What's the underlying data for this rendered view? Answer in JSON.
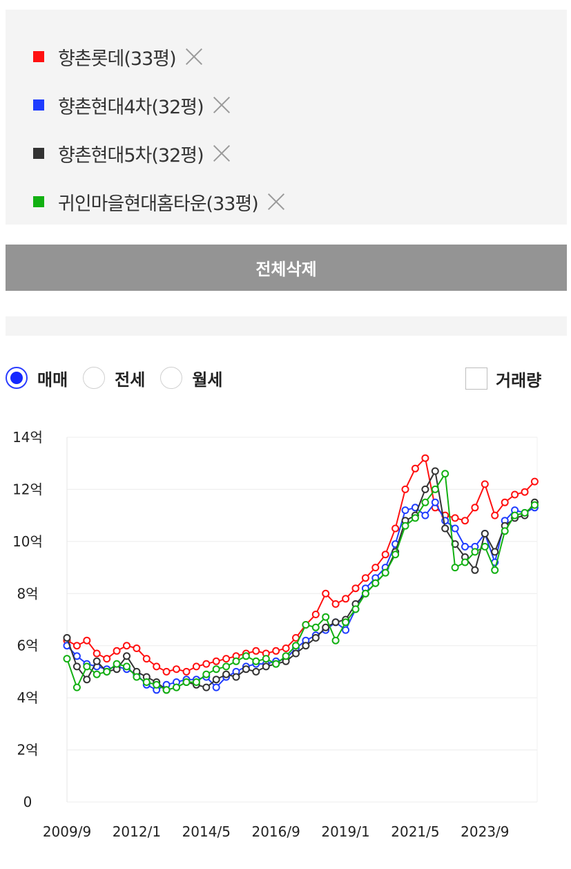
{
  "legend": {
    "items": [
      {
        "label": "향촌롯데(33평)",
        "color": "#ff1010",
        "swatch_icon": "red-square"
      },
      {
        "label": "향촌현대4차(32평)",
        "color": "#1f3cff",
        "swatch_icon": "blue-square"
      },
      {
        "label": "향촌현대5차(32평)",
        "color": "#333333",
        "swatch_icon": "dark-square"
      },
      {
        "label": "귀인마을현대홈타운(33평)",
        "color": "#12b012",
        "swatch_icon": "green-square"
      }
    ],
    "remove_icon": "close-icon"
  },
  "delete_all_label": "전체삭제",
  "trade_types": [
    {
      "label": "매매",
      "checked": true
    },
    {
      "label": "전세",
      "checked": false
    },
    {
      "label": "월세",
      "checked": false
    }
  ],
  "volume_toggle": {
    "label": "거래량",
    "checked": false
  },
  "chart_data": {
    "type": "line",
    "y_tick_labels": [
      "0",
      "2억",
      "4억",
      "6억",
      "8억",
      "10억",
      "12억",
      "14억"
    ],
    "ylim": [
      0,
      14
    ],
    "y_unit": "억",
    "x_tick_labels": [
      "2009/9",
      "2012/1",
      "2014/5",
      "2016/9",
      "2019/1",
      "2021/5",
      "2023/9"
    ],
    "xlim": [
      "2009/9",
      "2025/6"
    ],
    "grid": true,
    "markers": "hollow-circle",
    "series": [
      {
        "name": "향촌롯데(33평)",
        "color": "#ff1010",
        "points": [
          [
            "2009/9",
            6.2
          ],
          [
            "2010/1",
            6.0
          ],
          [
            "2010/5",
            6.2
          ],
          [
            "2010/9",
            5.7
          ],
          [
            "2011/1",
            5.5
          ],
          [
            "2011/5",
            5.8
          ],
          [
            "2011/9",
            6.0
          ],
          [
            "2012/1",
            5.9
          ],
          [
            "2012/5",
            5.5
          ],
          [
            "2012/9",
            5.2
          ],
          [
            "2013/1",
            5.0
          ],
          [
            "2013/5",
            5.1
          ],
          [
            "2013/9",
            5.0
          ],
          [
            "2014/1",
            5.2
          ],
          [
            "2014/5",
            5.3
          ],
          [
            "2014/9",
            5.4
          ],
          [
            "2015/1",
            5.5
          ],
          [
            "2015/5",
            5.6
          ],
          [
            "2015/9",
            5.7
          ],
          [
            "2016/1",
            5.8
          ],
          [
            "2016/5",
            5.7
          ],
          [
            "2016/9",
            5.8
          ],
          [
            "2017/1",
            5.9
          ],
          [
            "2017/5",
            6.3
          ],
          [
            "2017/9",
            6.8
          ],
          [
            "2018/1",
            7.2
          ],
          [
            "2018/5",
            8.0
          ],
          [
            "2018/9",
            7.6
          ],
          [
            "2019/1",
            7.8
          ],
          [
            "2019/5",
            8.2
          ],
          [
            "2019/9",
            8.6
          ],
          [
            "2020/1",
            9.0
          ],
          [
            "2020/5",
            9.5
          ],
          [
            "2020/9",
            10.5
          ],
          [
            "2021/1",
            12.0
          ],
          [
            "2021/5",
            12.8
          ],
          [
            "2021/9",
            13.2
          ],
          [
            "2022/1",
            11.3
          ],
          [
            "2022/5",
            11.0
          ],
          [
            "2022/9",
            10.9
          ],
          [
            "2023/1",
            10.8
          ],
          [
            "2023/5",
            11.3
          ],
          [
            "2023/9",
            12.2
          ],
          [
            "2024/1",
            11.0
          ],
          [
            "2024/5",
            11.5
          ],
          [
            "2024/9",
            11.8
          ],
          [
            "2025/1",
            11.9
          ],
          [
            "2025/5",
            12.3
          ]
        ]
      },
      {
        "name": "향촌현대4차(32평)",
        "color": "#1f3cff",
        "points": [
          [
            "2009/9",
            6.0
          ],
          [
            "2010/1",
            5.6
          ],
          [
            "2010/5",
            5.3
          ],
          [
            "2010/9",
            5.2
          ],
          [
            "2011/1",
            5.1
          ],
          [
            "2011/5",
            5.2
          ],
          [
            "2011/9",
            5.1
          ],
          [
            "2012/1",
            4.9
          ],
          [
            "2012/5",
            4.5
          ],
          [
            "2012/9",
            4.3
          ],
          [
            "2013/1",
            4.5
          ],
          [
            "2013/5",
            4.6
          ],
          [
            "2013/9",
            4.7
          ],
          [
            "2014/1",
            4.7
          ],
          [
            "2014/5",
            4.8
          ],
          [
            "2014/9",
            4.4
          ],
          [
            "2015/1",
            4.8
          ],
          [
            "2015/5",
            5.0
          ],
          [
            "2015/9",
            5.2
          ],
          [
            "2016/1",
            5.3
          ],
          [
            "2016/5",
            5.3
          ],
          [
            "2016/9",
            5.4
          ],
          [
            "2017/1",
            5.5
          ],
          [
            "2017/5",
            5.9
          ],
          [
            "2017/9",
            6.2
          ],
          [
            "2018/1",
            6.4
          ],
          [
            "2018/5",
            6.6
          ],
          [
            "2018/9",
            6.9
          ],
          [
            "2019/1",
            6.6
          ],
          [
            "2019/5",
            7.4
          ],
          [
            "2019/9",
            8.2
          ],
          [
            "2020/1",
            8.6
          ],
          [
            "2020/5",
            9.0
          ],
          [
            "2020/9",
            9.9
          ],
          [
            "2021/1",
            11.2
          ],
          [
            "2021/5",
            11.3
          ],
          [
            "2021/9",
            11.0
          ],
          [
            "2022/1",
            11.5
          ],
          [
            "2022/5",
            10.8
          ],
          [
            "2022/9",
            10.5
          ],
          [
            "2023/1",
            9.8
          ],
          [
            "2023/5",
            9.8
          ],
          [
            "2023/9",
            10.3
          ],
          [
            "2024/1",
            9.2
          ],
          [
            "2024/5",
            10.8
          ],
          [
            "2024/9",
            11.2
          ],
          [
            "2025/1",
            11.1
          ],
          [
            "2025/5",
            11.3
          ]
        ]
      },
      {
        "name": "향촌현대5차(32평)",
        "color": "#333333",
        "points": [
          [
            "2009/9",
            6.3
          ],
          [
            "2010/1",
            5.2
          ],
          [
            "2010/5",
            4.7
          ],
          [
            "2010/9",
            5.4
          ],
          [
            "2011/1",
            5.0
          ],
          [
            "2011/5",
            5.1
          ],
          [
            "2011/9",
            5.6
          ],
          [
            "2012/1",
            5.0
          ],
          [
            "2012/5",
            4.8
          ],
          [
            "2012/9",
            4.6
          ],
          [
            "2013/1",
            4.3
          ],
          [
            "2013/5",
            4.4
          ],
          [
            "2013/9",
            4.6
          ],
          [
            "2014/1",
            4.5
          ],
          [
            "2014/5",
            4.4
          ],
          [
            "2014/9",
            4.7
          ],
          [
            "2015/1",
            4.9
          ],
          [
            "2015/5",
            4.8
          ],
          [
            "2015/9",
            5.1
          ],
          [
            "2016/1",
            5.0
          ],
          [
            "2016/5",
            5.2
          ],
          [
            "2016/9",
            5.3
          ],
          [
            "2017/1",
            5.4
          ],
          [
            "2017/5",
            5.7
          ],
          [
            "2017/9",
            6.0
          ],
          [
            "2018/1",
            6.3
          ],
          [
            "2018/5",
            6.7
          ],
          [
            "2018/9",
            6.9
          ],
          [
            "2019/1",
            7.0
          ],
          [
            "2019/5",
            7.6
          ],
          [
            "2019/9",
            8.0
          ],
          [
            "2020/1",
            8.4
          ],
          [
            "2020/5",
            8.8
          ],
          [
            "2020/9",
            9.6
          ],
          [
            "2021/1",
            10.8
          ],
          [
            "2021/5",
            11.0
          ],
          [
            "2021/9",
            12.0
          ],
          [
            "2022/1",
            12.7
          ],
          [
            "2022/5",
            10.5
          ],
          [
            "2022/9",
            9.9
          ],
          [
            "2023/1",
            9.4
          ],
          [
            "2023/5",
            8.9
          ],
          [
            "2023/9",
            10.3
          ],
          [
            "2024/1",
            9.6
          ],
          [
            "2024/5",
            10.6
          ],
          [
            "2024/9",
            10.9
          ],
          [
            "2025/1",
            11.0
          ],
          [
            "2025/5",
            11.5
          ]
        ]
      },
      {
        "name": "귀인마을현대홈타운(33평)",
        "color": "#12b012",
        "points": [
          [
            "2009/9",
            5.5
          ],
          [
            "2010/1",
            4.4
          ],
          [
            "2010/5",
            5.2
          ],
          [
            "2010/9",
            4.9
          ],
          [
            "2011/1",
            5.0
          ],
          [
            "2011/5",
            5.3
          ],
          [
            "2011/9",
            5.2
          ],
          [
            "2012/1",
            4.8
          ],
          [
            "2012/5",
            4.6
          ],
          [
            "2012/9",
            4.5
          ],
          [
            "2013/1",
            4.3
          ],
          [
            "2013/5",
            4.4
          ],
          [
            "2013/9",
            4.6
          ],
          [
            "2014/1",
            4.6
          ],
          [
            "2014/5",
            4.9
          ],
          [
            "2014/9",
            5.1
          ],
          [
            "2015/1",
            5.2
          ],
          [
            "2015/5",
            5.4
          ],
          [
            "2015/9",
            5.6
          ],
          [
            "2016/1",
            5.4
          ],
          [
            "2016/5",
            5.5
          ],
          [
            "2016/9",
            5.3
          ],
          [
            "2017/1",
            5.6
          ],
          [
            "2017/5",
            6.0
          ],
          [
            "2017/9",
            6.8
          ],
          [
            "2018/1",
            6.7
          ],
          [
            "2018/5",
            7.1
          ],
          [
            "2018/9",
            6.2
          ],
          [
            "2019/1",
            6.9
          ],
          [
            "2019/5",
            7.4
          ],
          [
            "2019/9",
            8.0
          ],
          [
            "2020/1",
            8.4
          ],
          [
            "2020/5",
            8.8
          ],
          [
            "2020/9",
            9.5
          ],
          [
            "2021/1",
            10.6
          ],
          [
            "2021/5",
            10.9
          ],
          [
            "2021/9",
            11.5
          ],
          [
            "2022/1",
            12.0
          ],
          [
            "2022/5",
            12.6
          ],
          [
            "2022/9",
            9.0
          ],
          [
            "2023/1",
            9.2
          ],
          [
            "2023/5",
            9.6
          ],
          [
            "2023/9",
            9.8
          ],
          [
            "2024/1",
            8.9
          ],
          [
            "2024/5",
            10.4
          ],
          [
            "2024/9",
            11.0
          ],
          [
            "2025/1",
            11.1
          ],
          [
            "2025/5",
            11.4
          ]
        ]
      }
    ]
  }
}
